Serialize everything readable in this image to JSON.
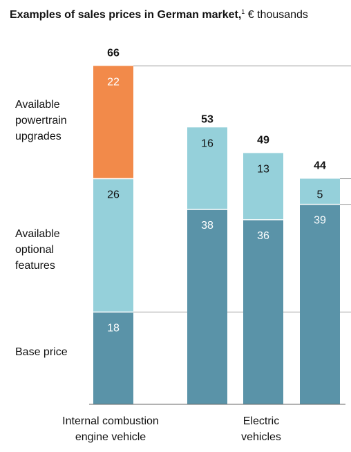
{
  "title": {
    "bold": "Examples of sales prices in German market,",
    "footnote_marker": "1",
    "unit": "€ thousands"
  },
  "row_labels": {
    "upgrades": "Available\npowertrain\nupgrades",
    "optional": "Available\noptional\nfeatures",
    "base": "Base price"
  },
  "group_labels": {
    "ice": "Internal combustion\nengine vehicle",
    "ev": "Electric\nvehicles"
  },
  "colors": {
    "base": "#5a93a8",
    "optional": "#95d0da",
    "upgrades": "#f28a4a"
  },
  "chart_data": {
    "type": "bar",
    "stacked": true,
    "categories": [
      "Internal combustion engine vehicle",
      "Electric vehicle 1",
      "Electric vehicle 2",
      "Electric vehicle 3"
    ],
    "series": [
      {
        "name": "Base price",
        "values": [
          18,
          38,
          36,
          39
        ]
      },
      {
        "name": "Available optional features",
        "values": [
          26,
          16,
          13,
          5
        ]
      },
      {
        "name": "Available powertrain upgrades",
        "values": [
          22,
          0,
          0,
          0
        ]
      }
    ],
    "totals": [
      66,
      53,
      49,
      44
    ],
    "ylim": [
      0,
      66
    ],
    "grid": false
  }
}
